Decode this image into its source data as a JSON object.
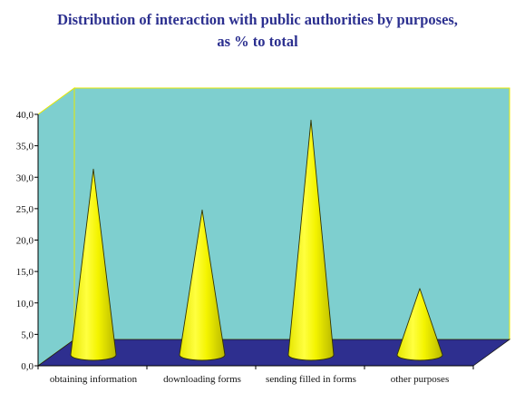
{
  "chart_data": {
    "type": "bar",
    "title_line1": "Distribution of interaction with public authorities by purposes,",
    "title_line2": "as % to total",
    "categories": [
      "obtaining information",
      "downloading forms",
      "sending filled in forms",
      "other purposes"
    ],
    "values": [
      31.0,
      24.5,
      38.8,
      12.0
    ],
    "ylim": [
      0,
      40
    ],
    "ytick_labels": [
      "0,0",
      "5,0",
      "10,0",
      "15,0",
      "20,0",
      "25,0",
      "30,0",
      "35,0",
      "40,0"
    ],
    "grid": false,
    "legend": "none",
    "colors": {
      "back_wall": "#7ecfcf",
      "floor": "#2e2f8f",
      "cone": "#f2f200",
      "title": "#2b2f8f"
    }
  }
}
